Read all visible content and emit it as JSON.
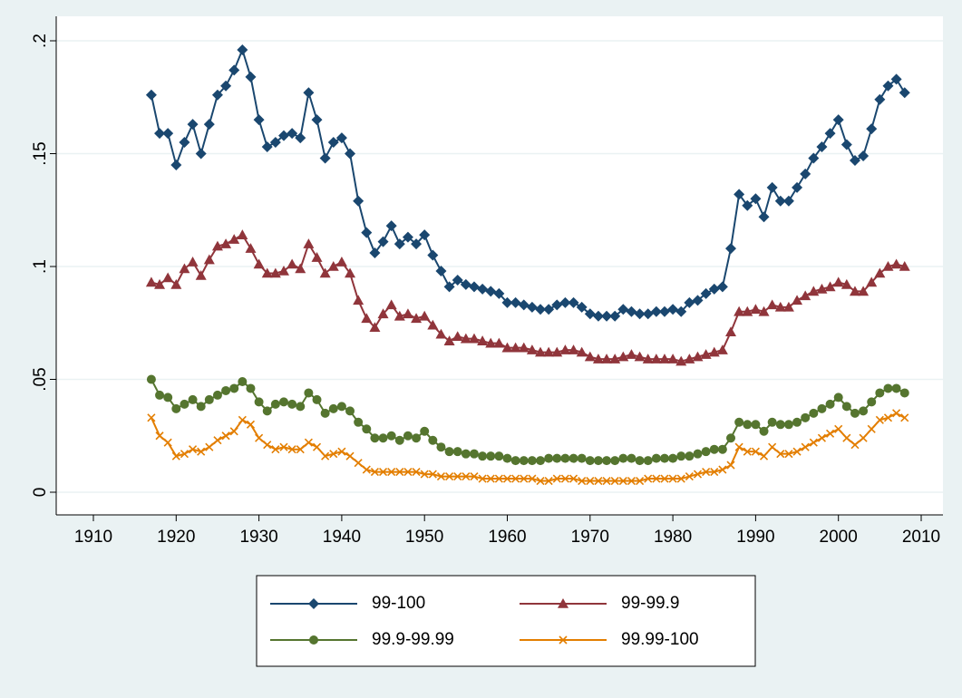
{
  "chart_data": {
    "type": "line",
    "x": [
      1917,
      1918,
      1919,
      1920,
      1921,
      1922,
      1923,
      1924,
      1925,
      1926,
      1927,
      1928,
      1929,
      1930,
      1931,
      1932,
      1933,
      1934,
      1935,
      1936,
      1937,
      1938,
      1939,
      1940,
      1941,
      1942,
      1943,
      1944,
      1945,
      1946,
      1947,
      1948,
      1949,
      1950,
      1951,
      1952,
      1953,
      1954,
      1955,
      1956,
      1957,
      1958,
      1959,
      1960,
      1961,
      1962,
      1963,
      1964,
      1965,
      1966,
      1967,
      1968,
      1969,
      1970,
      1971,
      1972,
      1973,
      1974,
      1975,
      1976,
      1977,
      1978,
      1979,
      1980,
      1981,
      1982,
      1983,
      1984,
      1985,
      1986,
      1987,
      1988,
      1989,
      1990,
      1991,
      1992,
      1993,
      1994,
      1995,
      1996,
      1997,
      1998,
      1999,
      2000,
      2001,
      2002,
      2003,
      2004,
      2005,
      2006,
      2007,
      2008
    ],
    "series": [
      {
        "name": "99-100",
        "color": "#1a476f",
        "marker": "diamond",
        "values": [
          0.176,
          0.159,
          0.159,
          0.145,
          0.155,
          0.163,
          0.15,
          0.163,
          0.176,
          0.18,
          0.187,
          0.196,
          0.184,
          0.165,
          0.153,
          0.155,
          0.158,
          0.159,
          0.157,
          0.177,
          0.165,
          0.148,
          0.155,
          0.157,
          0.15,
          0.129,
          0.115,
          0.106,
          0.111,
          0.118,
          0.11,
          0.113,
          0.11,
          0.114,
          0.105,
          0.098,
          0.091,
          0.094,
          0.092,
          0.091,
          0.09,
          0.089,
          0.088,
          0.084,
          0.084,
          0.083,
          0.082,
          0.081,
          0.081,
          0.083,
          0.084,
          0.084,
          0.082,
          0.079,
          0.078,
          0.078,
          0.078,
          0.081,
          0.08,
          0.079,
          0.079,
          0.08,
          0.08,
          0.081,
          0.08,
          0.084,
          0.085,
          0.088,
          0.09,
          0.091,
          0.108,
          0.132,
          0.127,
          0.13,
          0.122,
          0.135,
          0.129,
          0.129,
          0.135,
          0.141,
          0.148,
          0.153,
          0.159,
          0.165,
          0.154,
          0.147,
          0.149,
          0.161,
          0.174,
          0.18,
          0.183,
          0.177
        ]
      },
      {
        "name": "99-99.9",
        "color": "#90353b",
        "marker": "triangle",
        "values": [
          0.093,
          0.092,
          0.095,
          0.092,
          0.099,
          0.102,
          0.096,
          0.103,
          0.109,
          0.11,
          0.112,
          0.114,
          0.108,
          0.101,
          0.097,
          0.097,
          0.098,
          0.101,
          0.099,
          0.11,
          0.104,
          0.097,
          0.1,
          0.102,
          0.097,
          0.085,
          0.077,
          0.073,
          0.079,
          0.083,
          0.078,
          0.079,
          0.077,
          0.078,
          0.074,
          0.07,
          0.067,
          0.069,
          0.068,
          0.068,
          0.067,
          0.066,
          0.066,
          0.064,
          0.064,
          0.064,
          0.063,
          0.062,
          0.062,
          0.062,
          0.063,
          0.063,
          0.062,
          0.06,
          0.059,
          0.059,
          0.059,
          0.06,
          0.061,
          0.06,
          0.059,
          0.059,
          0.059,
          0.059,
          0.058,
          0.059,
          0.06,
          0.061,
          0.062,
          0.063,
          0.071,
          0.08,
          0.08,
          0.081,
          0.08,
          0.083,
          0.082,
          0.082,
          0.085,
          0.087,
          0.089,
          0.09,
          0.091,
          0.093,
          0.092,
          0.089,
          0.089,
          0.093,
          0.097,
          0.1,
          0.101,
          0.1
        ]
      },
      {
        "name": "99.9-99.99",
        "color": "#55752f",
        "marker": "circle",
        "values": [
          0.05,
          0.043,
          0.042,
          0.037,
          0.039,
          0.041,
          0.038,
          0.041,
          0.043,
          0.045,
          0.046,
          0.049,
          0.046,
          0.04,
          0.036,
          0.039,
          0.04,
          0.039,
          0.038,
          0.044,
          0.041,
          0.035,
          0.037,
          0.038,
          0.036,
          0.031,
          0.028,
          0.024,
          0.024,
          0.025,
          0.023,
          0.025,
          0.024,
          0.027,
          0.023,
          0.02,
          0.018,
          0.018,
          0.017,
          0.017,
          0.016,
          0.016,
          0.016,
          0.015,
          0.014,
          0.014,
          0.014,
          0.014,
          0.015,
          0.015,
          0.015,
          0.015,
          0.015,
          0.014,
          0.014,
          0.014,
          0.014,
          0.015,
          0.015,
          0.014,
          0.014,
          0.015,
          0.015,
          0.015,
          0.016,
          0.016,
          0.017,
          0.018,
          0.019,
          0.019,
          0.024,
          0.031,
          0.03,
          0.03,
          0.027,
          0.031,
          0.03,
          0.03,
          0.031,
          0.033,
          0.035,
          0.037,
          0.039,
          0.042,
          0.038,
          0.035,
          0.036,
          0.04,
          0.044,
          0.046,
          0.046,
          0.044
        ]
      },
      {
        "name": "99.99-100",
        "color": "#e37e00",
        "marker": "x",
        "values": [
          0.033,
          0.025,
          0.022,
          0.016,
          0.017,
          0.019,
          0.018,
          0.02,
          0.023,
          0.025,
          0.027,
          0.032,
          0.03,
          0.024,
          0.021,
          0.019,
          0.02,
          0.019,
          0.019,
          0.022,
          0.02,
          0.016,
          0.017,
          0.018,
          0.016,
          0.013,
          0.01,
          0.009,
          0.009,
          0.009,
          0.009,
          0.009,
          0.009,
          0.008,
          0.008,
          0.007,
          0.007,
          0.007,
          0.007,
          0.007,
          0.006,
          0.006,
          0.006,
          0.006,
          0.006,
          0.006,
          0.006,
          0.005,
          0.005,
          0.006,
          0.006,
          0.006,
          0.005,
          0.005,
          0.005,
          0.005,
          0.005,
          0.005,
          0.005,
          0.005,
          0.006,
          0.006,
          0.006,
          0.006,
          0.006,
          0.007,
          0.008,
          0.009,
          0.009,
          0.01,
          0.012,
          0.02,
          0.018,
          0.018,
          0.016,
          0.02,
          0.017,
          0.017,
          0.018,
          0.02,
          0.022,
          0.024,
          0.026,
          0.028,
          0.024,
          0.021,
          0.024,
          0.028,
          0.032,
          0.033,
          0.035,
          0.033
        ]
      }
    ],
    "xlim": [
      1910,
      2010
    ],
    "xticks": [
      1910,
      1920,
      1930,
      1940,
      1950,
      1960,
      1970,
      1980,
      1990,
      2000,
      2010
    ],
    "ylim": [
      0,
      0.2
    ],
    "yticks": [
      0,
      {
        "value": 0.05,
        "label": ".05"
      },
      {
        "value": 0.1,
        "label": ".1"
      },
      {
        "value": 0.15,
        "label": ".15"
      },
      {
        "value": 0.2,
        "label": ".2"
      }
    ],
    "grid": true,
    "legend": "bottom"
  }
}
